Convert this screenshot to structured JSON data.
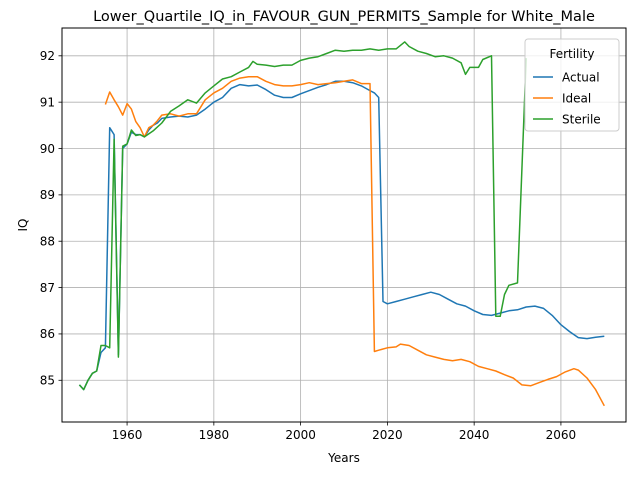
{
  "chart_data": {
    "type": "line",
    "title": "Lower_Quartile_IQ_in_FAVOUR_GUN_PERMITS_Sample for White_Male",
    "xlabel": "Years",
    "ylabel": "IQ",
    "xlim": [
      1945,
      2075
    ],
    "ylim": [
      84.1,
      92.6
    ],
    "xticks": [
      1960,
      1980,
      2000,
      2020,
      2040,
      2060
    ],
    "yticks": [
      85,
      86,
      87,
      88,
      89,
      90,
      91,
      92
    ],
    "grid": true,
    "legend": {
      "title": "Fertility",
      "position": "top-right"
    },
    "series": [
      {
        "name": "Actual",
        "color": "#1f77b4",
        "points": [
          [
            1949,
            84.9
          ],
          [
            1950,
            84.8
          ],
          [
            1951,
            85.0
          ],
          [
            1952,
            85.15
          ],
          [
            1953,
            85.2
          ],
          [
            1954,
            85.6
          ],
          [
            1955,
            85.7
          ],
          [
            1956,
            90.45
          ],
          [
            1957,
            90.3
          ],
          [
            1958,
            85.55
          ],
          [
            1959,
            90.0
          ],
          [
            1960,
            90.1
          ],
          [
            1961,
            90.35
          ],
          [
            1962,
            90.3
          ],
          [
            1963,
            90.3
          ],
          [
            1964,
            90.25
          ],
          [
            1965,
            90.4
          ],
          [
            1966,
            90.5
          ],
          [
            1967,
            90.55
          ],
          [
            1968,
            90.65
          ],
          [
            1970,
            90.68
          ],
          [
            1972,
            90.7
          ],
          [
            1974,
            90.68
          ],
          [
            1976,
            90.72
          ],
          [
            1978,
            90.85
          ],
          [
            1980,
            91.0
          ],
          [
            1982,
            91.1
          ],
          [
            1984,
            91.3
          ],
          [
            1986,
            91.38
          ],
          [
            1988,
            91.35
          ],
          [
            1990,
            91.37
          ],
          [
            1992,
            91.27
          ],
          [
            1994,
            91.15
          ],
          [
            1996,
            91.1
          ],
          [
            1998,
            91.1
          ],
          [
            2000,
            91.18
          ],
          [
            2002,
            91.25
          ],
          [
            2004,
            91.32
          ],
          [
            2006,
            91.38
          ],
          [
            2008,
            91.45
          ],
          [
            2010,
            91.45
          ],
          [
            2012,
            91.42
          ],
          [
            2014,
            91.35
          ],
          [
            2016,
            91.25
          ],
          [
            2017,
            91.2
          ],
          [
            2018,
            91.1
          ],
          [
            2019,
            86.7
          ],
          [
            2020,
            86.65
          ],
          [
            2022,
            86.7
          ],
          [
            2024,
            86.75
          ],
          [
            2026,
            86.8
          ],
          [
            2028,
            86.85
          ],
          [
            2030,
            86.9
          ],
          [
            2032,
            86.85
          ],
          [
            2034,
            86.75
          ],
          [
            2036,
            86.65
          ],
          [
            2038,
            86.6
          ],
          [
            2040,
            86.5
          ],
          [
            2042,
            86.42
          ],
          [
            2044,
            86.4
          ],
          [
            2046,
            86.45
          ],
          [
            2048,
            86.5
          ],
          [
            2050,
            86.52
          ],
          [
            2052,
            86.58
          ],
          [
            2054,
            86.6
          ],
          [
            2056,
            86.55
          ],
          [
            2058,
            86.4
          ],
          [
            2060,
            86.2
          ],
          [
            2062,
            86.05
          ],
          [
            2064,
            85.92
          ],
          [
            2066,
            85.9
          ],
          [
            2068,
            85.93
          ],
          [
            2070,
            85.95
          ]
        ]
      },
      {
        "name": "Ideal",
        "color": "#ff7f0e",
        "points": [
          [
            1955,
            90.95
          ],
          [
            1956,
            91.22
          ],
          [
            1957,
            91.05
          ],
          [
            1958,
            90.9
          ],
          [
            1959,
            90.72
          ],
          [
            1960,
            90.97
          ],
          [
            1961,
            90.85
          ],
          [
            1962,
            90.58
          ],
          [
            1963,
            90.45
          ],
          [
            1964,
            90.25
          ],
          [
            1965,
            90.45
          ],
          [
            1966,
            90.5
          ],
          [
            1967,
            90.6
          ],
          [
            1968,
            90.72
          ],
          [
            1970,
            90.75
          ],
          [
            1972,
            90.7
          ],
          [
            1974,
            90.75
          ],
          [
            1976,
            90.75
          ],
          [
            1978,
            91.05
          ],
          [
            1980,
            91.2
          ],
          [
            1982,
            91.3
          ],
          [
            1984,
            91.45
          ],
          [
            1986,
            91.52
          ],
          [
            1988,
            91.55
          ],
          [
            1990,
            91.55
          ],
          [
            1992,
            91.45
          ],
          [
            1994,
            91.38
          ],
          [
            1996,
            91.35
          ],
          [
            1998,
            91.35
          ],
          [
            2000,
            91.38
          ],
          [
            2002,
            91.42
          ],
          [
            2004,
            91.38
          ],
          [
            2006,
            91.4
          ],
          [
            2008,
            91.42
          ],
          [
            2010,
            91.45
          ],
          [
            2012,
            91.48
          ],
          [
            2014,
            91.4
          ],
          [
            2016,
            91.4
          ],
          [
            2017,
            85.62
          ],
          [
            2018,
            85.65
          ],
          [
            2020,
            85.7
          ],
          [
            2022,
            85.72
          ],
          [
            2023,
            85.78
          ],
          [
            2025,
            85.75
          ],
          [
            2027,
            85.65
          ],
          [
            2029,
            85.55
          ],
          [
            2031,
            85.5
          ],
          [
            2033,
            85.45
          ],
          [
            2035,
            85.42
          ],
          [
            2037,
            85.45
          ],
          [
            2039,
            85.4
          ],
          [
            2041,
            85.3
          ],
          [
            2043,
            85.25
          ],
          [
            2045,
            85.2
          ],
          [
            2047,
            85.12
          ],
          [
            2049,
            85.05
          ],
          [
            2051,
            84.9
          ],
          [
            2053,
            84.88
          ],
          [
            2055,
            84.95
          ],
          [
            2057,
            85.02
          ],
          [
            2059,
            85.08
          ],
          [
            2061,
            85.18
          ],
          [
            2063,
            85.25
          ],
          [
            2064,
            85.22
          ],
          [
            2066,
            85.05
          ],
          [
            2068,
            84.8
          ],
          [
            2070,
            84.45
          ]
        ]
      },
      {
        "name": "Sterile",
        "color": "#2ca02c",
        "points": [
          [
            1949,
            84.9
          ],
          [
            1950,
            84.8
          ],
          [
            1951,
            85.0
          ],
          [
            1952,
            85.15
          ],
          [
            1953,
            85.2
          ],
          [
            1954,
            85.75
          ],
          [
            1955,
            85.75
          ],
          [
            1956,
            85.7
          ],
          [
            1957,
            90.2
          ],
          [
            1958,
            85.5
          ],
          [
            1959,
            90.05
          ],
          [
            1960,
            90.1
          ],
          [
            1961,
            90.4
          ],
          [
            1962,
            90.28
          ],
          [
            1963,
            90.3
          ],
          [
            1964,
            90.25
          ],
          [
            1966,
            90.38
          ],
          [
            1968,
            90.55
          ],
          [
            1970,
            90.8
          ],
          [
            1972,
            90.92
          ],
          [
            1974,
            91.05
          ],
          [
            1976,
            90.98
          ],
          [
            1978,
            91.2
          ],
          [
            1980,
            91.35
          ],
          [
            1982,
            91.5
          ],
          [
            1984,
            91.55
          ],
          [
            1986,
            91.65
          ],
          [
            1988,
            91.75
          ],
          [
            1989,
            91.88
          ],
          [
            1990,
            91.82
          ],
          [
            1992,
            91.8
          ],
          [
            1994,
            91.77
          ],
          [
            1996,
            91.8
          ],
          [
            1998,
            91.8
          ],
          [
            2000,
            91.9
          ],
          [
            2002,
            91.95
          ],
          [
            2004,
            91.98
          ],
          [
            2006,
            92.05
          ],
          [
            2008,
            92.12
          ],
          [
            2010,
            92.1
          ],
          [
            2012,
            92.12
          ],
          [
            2014,
            92.12
          ],
          [
            2016,
            92.15
          ],
          [
            2018,
            92.12
          ],
          [
            2020,
            92.15
          ],
          [
            2022,
            92.15
          ],
          [
            2024,
            92.3
          ],
          [
            2025,
            92.2
          ],
          [
            2027,
            92.1
          ],
          [
            2029,
            92.05
          ],
          [
            2031,
            91.98
          ],
          [
            2033,
            92.0
          ],
          [
            2035,
            91.95
          ],
          [
            2037,
            91.85
          ],
          [
            2038,
            91.6
          ],
          [
            2039,
            91.75
          ],
          [
            2041,
            91.75
          ],
          [
            2042,
            91.92
          ],
          [
            2044,
            92.0
          ],
          [
            2045,
            86.38
          ],
          [
            2046,
            86.38
          ],
          [
            2047,
            86.85
          ],
          [
            2048,
            87.05
          ],
          [
            2050,
            87.1
          ],
          [
            2052,
            91.95
          ]
        ]
      }
    ]
  }
}
